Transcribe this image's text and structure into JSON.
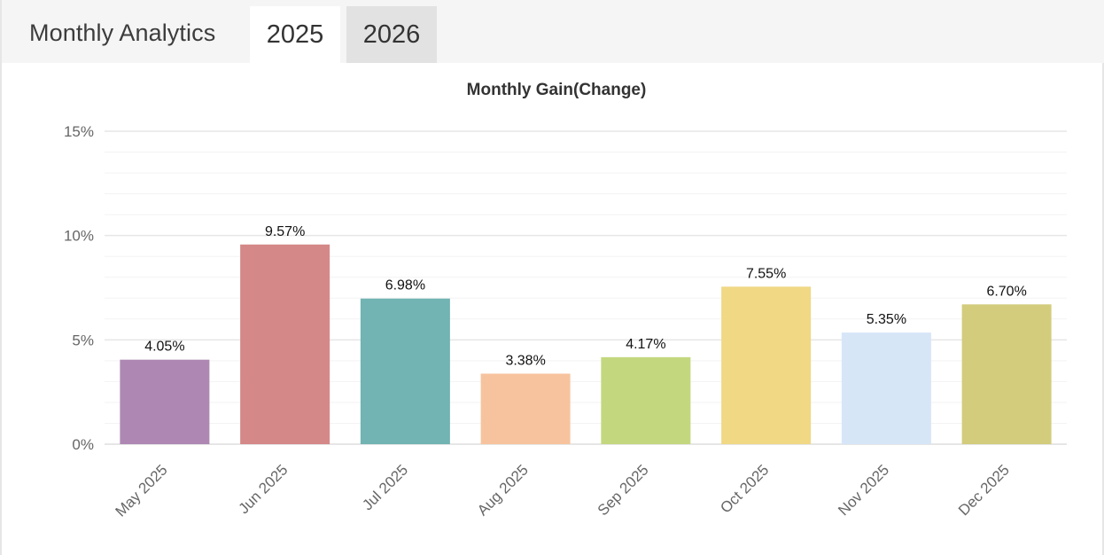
{
  "header": {
    "title": "Monthly Analytics",
    "tabs": [
      {
        "label": "2025",
        "active": true
      },
      {
        "label": "2026",
        "active": false
      }
    ]
  },
  "chart_data": {
    "type": "bar",
    "title": "Monthly Gain(Change)",
    "xlabel": "",
    "ylabel": "",
    "ylim": [
      0,
      15
    ],
    "y_ticks": [
      0,
      5,
      10,
      15
    ],
    "y_tick_labels": [
      "0%",
      "5%",
      "10%",
      "15%"
    ],
    "grid": true,
    "legend": "none",
    "categories": [
      "May 2025",
      "Jun 2025",
      "Jul 2025",
      "Aug 2025",
      "Sep 2025",
      "Oct 2025",
      "Nov 2025",
      "Dec 2025"
    ],
    "values": [
      4.05,
      9.57,
      6.98,
      3.38,
      4.17,
      7.55,
      5.35,
      6.7
    ],
    "data_labels": [
      "4.05%",
      "9.57%",
      "6.98%",
      "3.38%",
      "4.17%",
      "7.55%",
      "5.35%",
      "6.70%"
    ],
    "colors": [
      "#ae88b3",
      "#d58888",
      "#72b3b3",
      "#f7c39e",
      "#c3d87e",
      "#f0d885",
      "#d6e6f7",
      "#d2cc7c"
    ]
  }
}
